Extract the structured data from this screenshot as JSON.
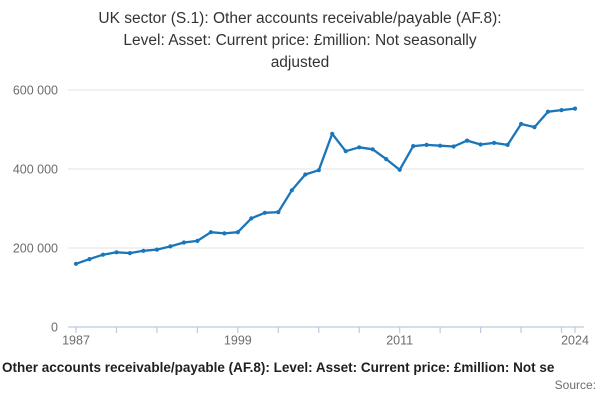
{
  "title": {
    "lines": [
      "UK sector (S.1): Other accounts receivable/payable (AF.8):",
      "Level: Asset: Current price: £million: Not seasonally",
      "adjusted"
    ]
  },
  "footer": {
    "caption": "Other accounts receivable/payable (AF.8): Level: Asset: Current price: £million: Not se",
    "source_label": "Source:"
  },
  "chart_data": {
    "type": "line",
    "title": "UK sector (S.1): Other accounts receivable/payable (AF.8): Level: Asset: Current price: £million: Not seasonally adjusted",
    "xlabel": "",
    "ylabel": "",
    "x": [
      1987,
      1988,
      1989,
      1990,
      1991,
      1992,
      1993,
      1994,
      1995,
      1996,
      1997,
      1998,
      1999,
      2000,
      2001,
      2002,
      2003,
      2004,
      2005,
      2006,
      2007,
      2008,
      2009,
      2010,
      2011,
      2012,
      2013,
      2014,
      2015,
      2016,
      2017,
      2018,
      2019,
      2020,
      2021,
      2022,
      2023,
      2024
    ],
    "values": [
      160000,
      172000,
      183000,
      189000,
      187000,
      193000,
      196000,
      204000,
      214000,
      218000,
      240000,
      237000,
      240000,
      275000,
      289000,
      291000,
      346000,
      386000,
      397000,
      489000,
      445000,
      455000,
      450000,
      425000,
      398000,
      458000,
      461000,
      459000,
      457000,
      472000,
      462000,
      466000,
      461000,
      514000,
      506000,
      545000,
      549000,
      553000
    ],
    "xlim": [
      1987,
      2024
    ],
    "ylim": [
      0,
      600000
    ],
    "yticks": [
      0,
      200000,
      400000,
      600000
    ],
    "ytick_labels": [
      "0",
      "200 000",
      "400 000",
      "600 000"
    ],
    "xticks": [
      1987,
      1990,
      1993,
      1996,
      1999,
      2002,
      2005,
      2008,
      2011,
      2014,
      2017,
      2020,
      2023,
      2024
    ],
    "xtick_labels": [
      {
        "year": 1987,
        "label": "1987"
      },
      {
        "year": 1999,
        "label": "1999"
      },
      {
        "year": 2011,
        "label": "2011"
      },
      {
        "year": 2024,
        "label": "2024"
      }
    ],
    "grid": "horizontal",
    "legend": "none",
    "marker": "dot",
    "line_color": "#1976bb",
    "axis_color": "#bdcadf",
    "grid_color": "#e3e3e3",
    "tick_label_color": "#6d6d6d"
  }
}
